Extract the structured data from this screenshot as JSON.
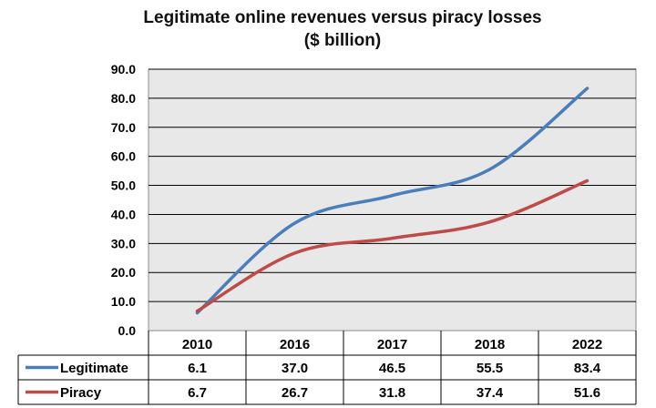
{
  "chart_data": {
    "type": "line",
    "title_lines": [
      "Legitimate online revenues versus piracy losses",
      "($ billion)"
    ],
    "categories": [
      "2010",
      "2016",
      "2017",
      "2018",
      "2022"
    ],
    "ylim": [
      0,
      90
    ],
    "yticks": [
      0,
      10,
      20,
      30,
      40,
      50,
      60,
      70,
      80,
      90
    ],
    "ytick_labels": [
      "0.0",
      "10.0",
      "20.0",
      "30.0",
      "40.0",
      "50.0",
      "60.0",
      "70.0",
      "80.0",
      "90.0"
    ],
    "grid": true,
    "xlabel": "",
    "ylabel": "",
    "series": [
      {
        "name": "Legitimate",
        "color": "#4a7ebb",
        "values": [
          6.1,
          37.0,
          46.5,
          55.5,
          83.4
        ],
        "value_labels": [
          "6.1",
          "37.0",
          "46.5",
          "55.5",
          "83.4"
        ]
      },
      {
        "name": "Piracy",
        "color": "#be4b48",
        "values": [
          6.7,
          26.7,
          31.8,
          37.4,
          51.6
        ],
        "value_labels": [
          "6.7",
          "26.7",
          "31.8",
          "37.4",
          "51.6"
        ]
      }
    ],
    "plot_background": "#e8e8e8",
    "grid_color": "#000000"
  }
}
